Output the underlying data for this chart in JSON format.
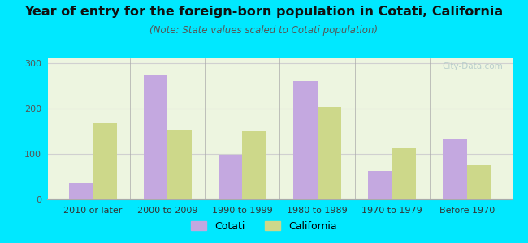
{
  "title": "Year of entry for the foreign-born population in Cotati, California",
  "subtitle": "(Note: State values scaled to Cotati population)",
  "categories": [
    "2010 or later",
    "2000 to 2009",
    "1990 to 1999",
    "1980 to 1989",
    "1970 to 1979",
    "Before 1970"
  ],
  "cotati_values": [
    35,
    275,
    98,
    260,
    63,
    132
  ],
  "california_values": [
    168,
    152,
    150,
    203,
    112,
    75
  ],
  "cotati_color": "#c4a8e0",
  "california_color": "#cdd88a",
  "bar_width": 0.32,
  "ylim": [
    0,
    310
  ],
  "yticks": [
    0,
    100,
    200,
    300
  ],
  "background_outer": "#00e8ff",
  "background_inner_top": "#f5fff5",
  "background_inner": "#edf5e0",
  "title_fontsize": 11.5,
  "subtitle_fontsize": 8.5,
  "tick_fontsize": 8,
  "legend_fontsize": 9,
  "grid_color": "#d0d0d0",
  "watermark_text": "City-Data.com",
  "watermark_color": "#b0c8c8"
}
